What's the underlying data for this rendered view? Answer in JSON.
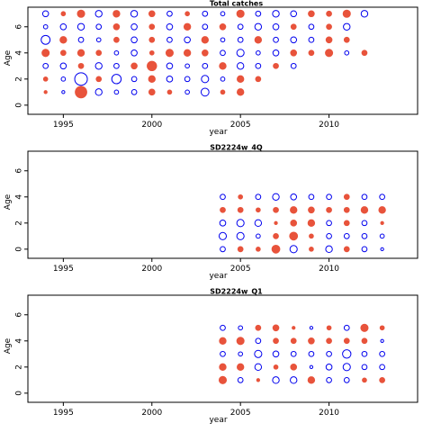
{
  "chart_data": [
    {
      "type": "scatter",
      "title": "Total catches",
      "xlabel": "year",
      "ylabel": "Age",
      "xlim": [
        1993,
        2015
      ],
      "ylim": [
        -0.7,
        7.5
      ],
      "xticks": [
        "1995",
        "2000",
        "2005",
        "2010"
      ],
      "yticks": [
        "0",
        "2",
        "4",
        "6"
      ],
      "years": [
        1994,
        1995,
        1996,
        1997,
        1998,
        1999,
        2000,
        2001,
        2002,
        2003,
        2004,
        2005,
        2006,
        2007,
        2008,
        2009,
        2010,
        2011,
        2012,
        2013
      ],
      "ages": [
        1,
        2,
        3,
        4,
        5,
        6,
        7
      ],
      "residuals": [
        [
          0.1,
          -0.1,
          1.5,
          -0.5,
          -0.2,
          -0.3,
          0.4,
          0.2,
          -0.2,
          -0.7,
          0.2,
          0.5
        ],
        [
          0.2,
          -0.2,
          -1.8,
          0.3,
          -1.0,
          -0.3,
          0.5,
          -0.4,
          -0.3,
          -0.6,
          -0.2,
          0.5,
          0.3
        ],
        [
          -0.3,
          -0.4,
          0.3,
          -0.5,
          -0.3,
          0.4,
          1.0,
          -0.4,
          -0.2,
          -0.3,
          0.5,
          -0.5,
          -0.3,
          0.3,
          -0.3
        ],
        [
          0.6,
          0.3,
          0.5,
          0.3,
          -0.2,
          -0.4,
          0.2,
          0.6,
          0.5,
          0.4,
          -0.3,
          -0.6,
          -0.2,
          -0.4,
          0.4,
          0.3,
          0.6,
          -0.2,
          0.3
        ],
        [
          -0.9,
          0.5,
          -0.3,
          -0.2,
          0.3,
          -0.4,
          0.3,
          -0.3,
          -0.4,
          0.5,
          -0.2,
          -0.3,
          0.5,
          -0.3,
          -0.4,
          -0.3,
          0.4,
          0.3
        ],
        [
          -0.2,
          -0.4,
          -0.5,
          -0.3,
          0.4,
          -0.4,
          0.3,
          -0.4,
          0.5,
          -0.3,
          0.4,
          -0.3,
          -0.5,
          -0.4,
          0.3,
          -0.3,
          0.3,
          -0.5
        ],
        [
          -0.4,
          0.2,
          0.6,
          -0.5,
          0.5,
          -0.5,
          0.4,
          -0.3,
          0.2,
          -0.3,
          -0.2,
          0.6,
          -0.3,
          -0.5,
          -0.4,
          0.4,
          0.3,
          0.6,
          -0.5
        ]
      ]
    },
    {
      "type": "scatter",
      "title": "SD2224w_4Q",
      "xlabel": "year",
      "ylabel": "Age",
      "xlim": [
        1993,
        2015
      ],
      "ylim": [
        -0.7,
        7.5
      ],
      "xticks": [
        "1995",
        "2000",
        "2005",
        "2010"
      ],
      "yticks": [
        "0",
        "2",
        "4",
        "6"
      ],
      "years": [
        2004,
        2005,
        2006,
        2007,
        2008,
        2009,
        2010,
        2011,
        2012,
        2013
      ],
      "ages": [
        0,
        1,
        2,
        3,
        4
      ],
      "residuals": [
        [
          -0.3,
          0.3,
          0.2,
          0.7,
          -0.6,
          0.2,
          -0.5,
          0.3,
          -0.3,
          -0.1
        ],
        [
          -0.6,
          -0.6,
          -0.2,
          0.3,
          0.7,
          0.2,
          -0.3,
          -0.3,
          -0.3,
          -0.2
        ],
        [
          -0.4,
          -0.6,
          -0.5,
          0.1,
          0.4,
          0.5,
          -0.3,
          0.3,
          -0.3,
          0.1
        ],
        [
          0.3,
          0.3,
          0.2,
          0.3,
          0.5,
          0.4,
          0.3,
          0.3,
          0.5,
          0.5
        ],
        [
          -0.3,
          0.2,
          -0.3,
          -0.5,
          -0.4,
          -0.3,
          -0.3,
          0.3,
          -0.3,
          -0.3
        ]
      ]
    },
    {
      "type": "scatter",
      "title": "SD2224w_Q1",
      "xlabel": "year",
      "ylabel": "Age",
      "xlim": [
        1993,
        2015
      ],
      "ylim": [
        -0.7,
        7.5
      ],
      "xticks": [
        "1995",
        "2000",
        "2005",
        "2010"
      ],
      "yticks": [
        "0",
        "2",
        "4",
        "6"
      ],
      "years": [
        2004,
        2005,
        2006,
        2007,
        2008,
        2009,
        2010,
        2011,
        2012,
        2013
      ],
      "ages": [
        1,
        2,
        3,
        4,
        5
      ],
      "residuals": [
        [
          0.6,
          -0.3,
          0.1,
          -0.5,
          -0.5,
          0.5,
          -0.3,
          -0.3,
          0.2,
          0.3
        ],
        [
          0.5,
          0.5,
          -0.5,
          0.2,
          0.4,
          -0.1,
          -0.4,
          -0.6,
          -0.3,
          -0.3
        ],
        [
          -0.3,
          -0.2,
          -0.6,
          -0.4,
          -0.3,
          -0.3,
          -0.3,
          -0.8,
          -0.3,
          -0.3
        ],
        [
          0.5,
          0.6,
          -0.3,
          0.3,
          0.3,
          0.4,
          0.3,
          0.3,
          0.3,
          -0.1
        ],
        [
          -0.3,
          -0.2,
          0.3,
          0.4,
          0.1,
          -0.1,
          0.2,
          -0.3,
          0.6,
          0.2
        ]
      ]
    }
  ],
  "colors": {
    "positive": "#e8533b",
    "negative": "#0000ee",
    "axis": "#000000"
  }
}
